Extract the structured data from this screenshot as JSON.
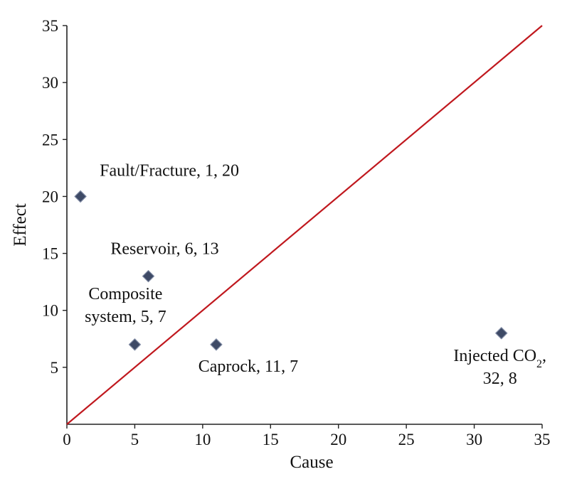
{
  "chart_data": {
    "type": "scatter",
    "xlabel": "Cause",
    "ylabel": "Effect",
    "xlim": [
      0,
      35
    ],
    "ylim": [
      0,
      35
    ],
    "xticks": [
      0,
      5,
      10,
      15,
      20,
      25,
      30,
      35
    ],
    "yticks": [
      5,
      10,
      15,
      20,
      25,
      30,
      35
    ],
    "grid": false,
    "reference_line": {
      "x": [
        0,
        35
      ],
      "y": [
        0,
        35
      ],
      "color": "#c0181e"
    },
    "marker_color": "#3e4a66",
    "points": [
      {
        "x": 1,
        "y": 20,
        "label_lines": [
          "Fault/Fracture, 1, 20"
        ]
      },
      {
        "x": 6,
        "y": 13,
        "label_lines": [
          "Reservoir, 6, 13"
        ]
      },
      {
        "x": 5,
        "y": 7,
        "label_lines": [
          "Composite",
          "system, 5, 7"
        ]
      },
      {
        "x": 11,
        "y": 7,
        "label_lines": [
          "Caprock, 11, 7"
        ]
      },
      {
        "x": 32,
        "y": 8,
        "label_lines": [
          "Injected CO",
          "32, 8"
        ],
        "subscript": "2",
        "suffix": ","
      }
    ]
  }
}
